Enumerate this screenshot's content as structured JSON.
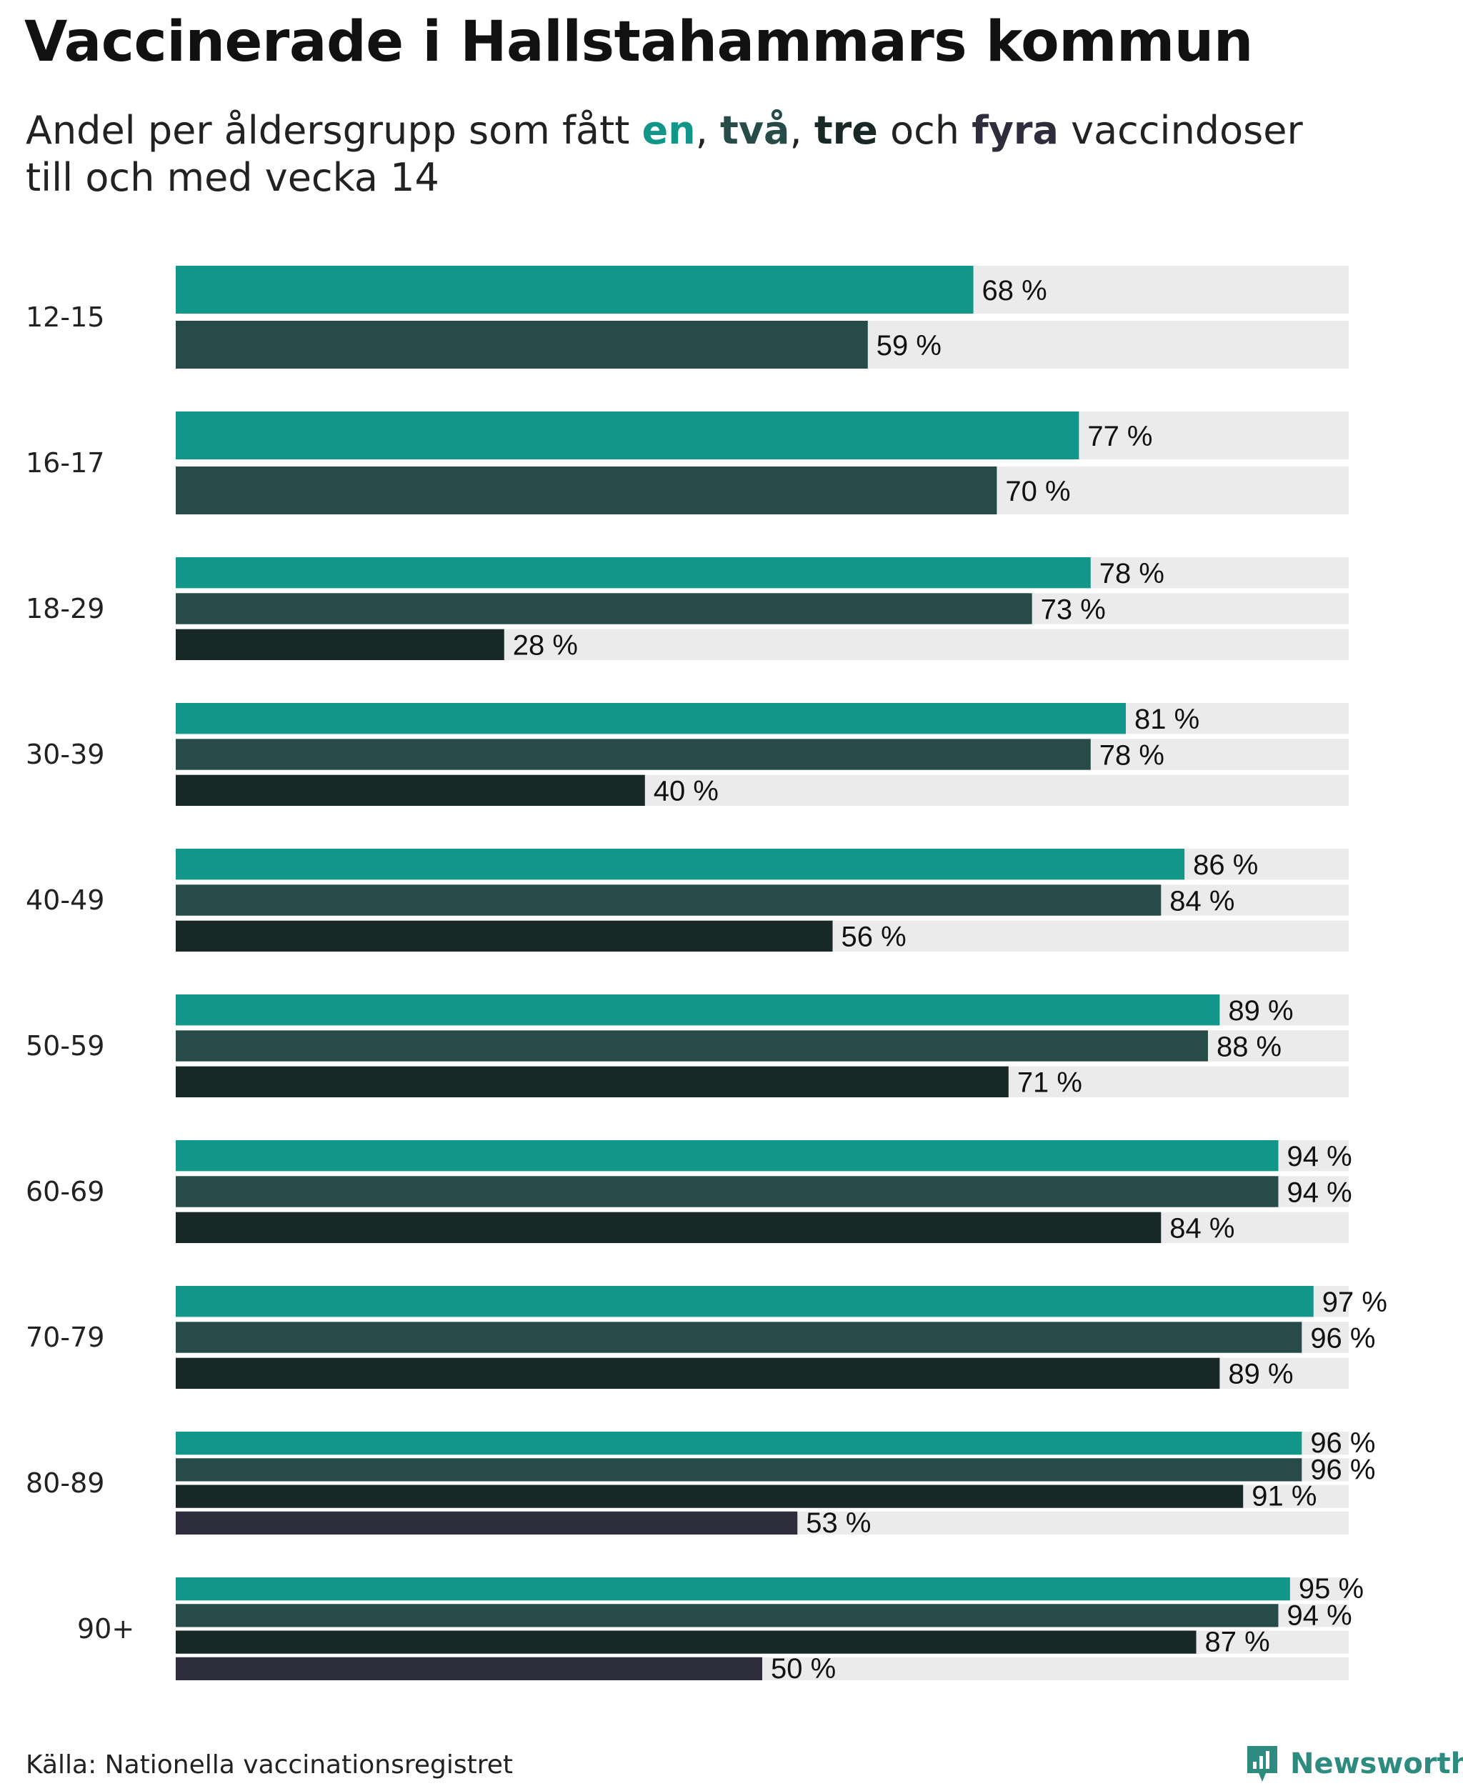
{
  "title": "Vaccinerade i Hallstahammars kommun",
  "subtitle": {
    "prefix": "Andel per åldersgrupp som fått ",
    "dose1": "en",
    "sep1": ", ",
    "dose2": "två",
    "sep2": ", ",
    "dose3": "tre",
    "sep3": " och ",
    "dose4": "fyra",
    "suffix": " vaccindoser",
    "line2": "till och med vecka 14"
  },
  "colors": {
    "dose1": "#13968a",
    "dose2": "#264b48",
    "dose3": "#182826",
    "dose4": "#2e2d3b",
    "track": "#ebebeb"
  },
  "source": "Källa: Nationella vaccinationsregistret",
  "brand": "Newsworthy",
  "chart_data": {
    "type": "bar",
    "orientation": "horizontal",
    "title": "Vaccinerade i Hallstahammars kommun",
    "xlim": [
      0,
      100
    ],
    "unit": "%",
    "series_names": [
      "en",
      "två",
      "tre",
      "fyra"
    ],
    "categories": [
      "12-15",
      "16-17",
      "18-29",
      "30-39",
      "40-49",
      "50-59",
      "60-69",
      "70-79",
      "80-89",
      "90+"
    ],
    "series": [
      {
        "name": "en",
        "values": [
          68,
          77,
          78,
          81,
          86,
          89,
          94,
          97,
          96,
          95
        ]
      },
      {
        "name": "två",
        "values": [
          59,
          70,
          73,
          78,
          84,
          88,
          94,
          96,
          96,
          94
        ]
      },
      {
        "name": "tre",
        "values": [
          null,
          null,
          28,
          40,
          56,
          71,
          84,
          89,
          91,
          87
        ]
      },
      {
        "name": "fyra",
        "values": [
          null,
          null,
          null,
          null,
          null,
          null,
          null,
          null,
          53,
          50
        ]
      }
    ]
  }
}
